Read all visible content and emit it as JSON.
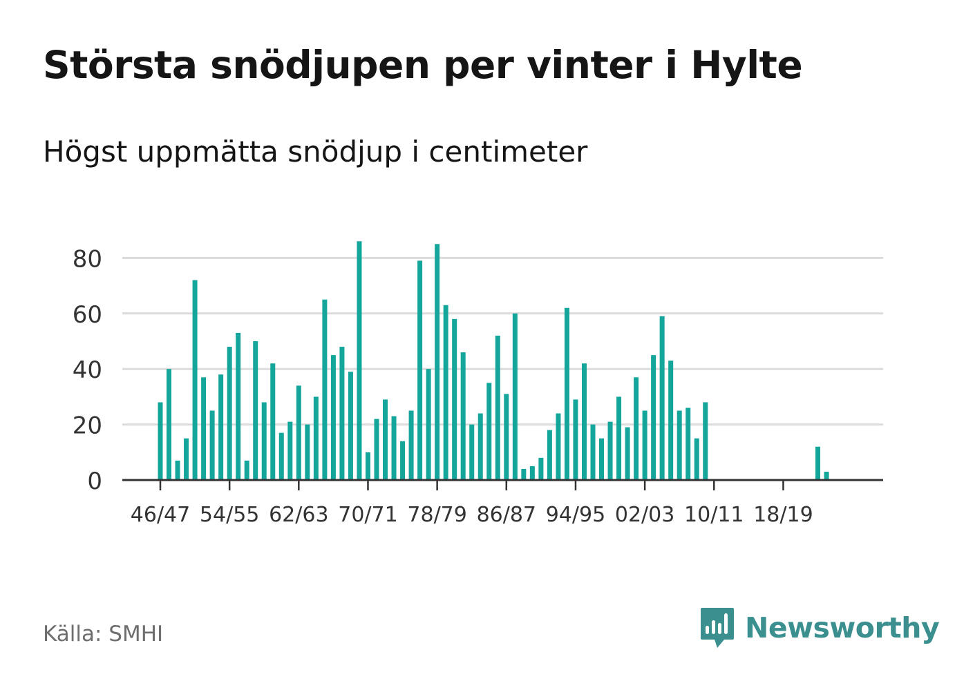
{
  "header": {
    "title": "Största snödjupen per vinter i Hylte",
    "subtitle": "Högst uppmätta snödjup i centimeter"
  },
  "footer": {
    "source": "Källa: SMHI",
    "brand": "Newsworthy"
  },
  "colors": {
    "bar": "#14a59b",
    "grid": "#dcdcdc",
    "axis": "#333333",
    "brand": "#3b8f8f"
  },
  "chart_data": {
    "type": "bar",
    "x_ticks": [
      "46/47",
      "54/55",
      "62/63",
      "70/71",
      "78/79",
      "86/87",
      "94/95",
      "02/03",
      "10/11",
      "18/19"
    ],
    "categories": [
      "46/47",
      "47/48",
      "48/49",
      "49/50",
      "50/51",
      "51/52",
      "52/53",
      "53/54",
      "54/55",
      "55/56",
      "56/57",
      "57/58",
      "58/59",
      "59/60",
      "60/61",
      "61/62",
      "62/63",
      "63/64",
      "64/65",
      "65/66",
      "66/67",
      "67/68",
      "68/69",
      "69/70",
      "70/71",
      "71/72",
      "72/73",
      "73/74",
      "74/75",
      "75/76",
      "76/77",
      "77/78",
      "78/79",
      "79/80",
      "80/81",
      "81/82",
      "82/83",
      "83/84",
      "84/85",
      "85/86",
      "86/87",
      "87/88",
      "88/89",
      "89/90",
      "90/91",
      "91/92",
      "92/93",
      "93/94",
      "94/95",
      "95/96",
      "96/97",
      "97/98",
      "98/99",
      "99/00",
      "00/01",
      "01/02",
      "02/03",
      "03/04",
      "04/05",
      "05/06",
      "06/07",
      "07/08",
      "08/09",
      "09/10",
      "10/11",
      "11/12",
      "12/13",
      "13/14",
      "14/15",
      "15/16",
      "16/17",
      "17/18",
      "18/19",
      "19/20",
      "20/21",
      "21/22",
      "22/23",
      "23/24"
    ],
    "values": [
      28,
      40,
      7,
      15,
      72,
      37,
      25,
      38,
      48,
      53,
      7,
      50,
      28,
      42,
      17,
      21,
      34,
      20,
      30,
      65,
      45,
      48,
      39,
      86,
      10,
      22,
      29,
      23,
      14,
      25,
      79,
      40,
      85,
      63,
      58,
      46,
      20,
      24,
      35,
      52,
      31,
      60,
      4,
      5,
      8,
      18,
      24,
      62,
      29,
      42,
      20,
      15,
      21,
      30,
      19,
      37,
      25,
      45,
      59,
      43,
      25,
      26,
      15,
      28,
      0,
      0,
      0,
      0,
      0,
      0,
      0,
      0,
      0,
      0,
      0,
      0,
      12,
      3
    ],
    "y_ticks": [
      0,
      20,
      40,
      60,
      80
    ],
    "ylim": [
      0,
      90
    ],
    "grid": true
  }
}
